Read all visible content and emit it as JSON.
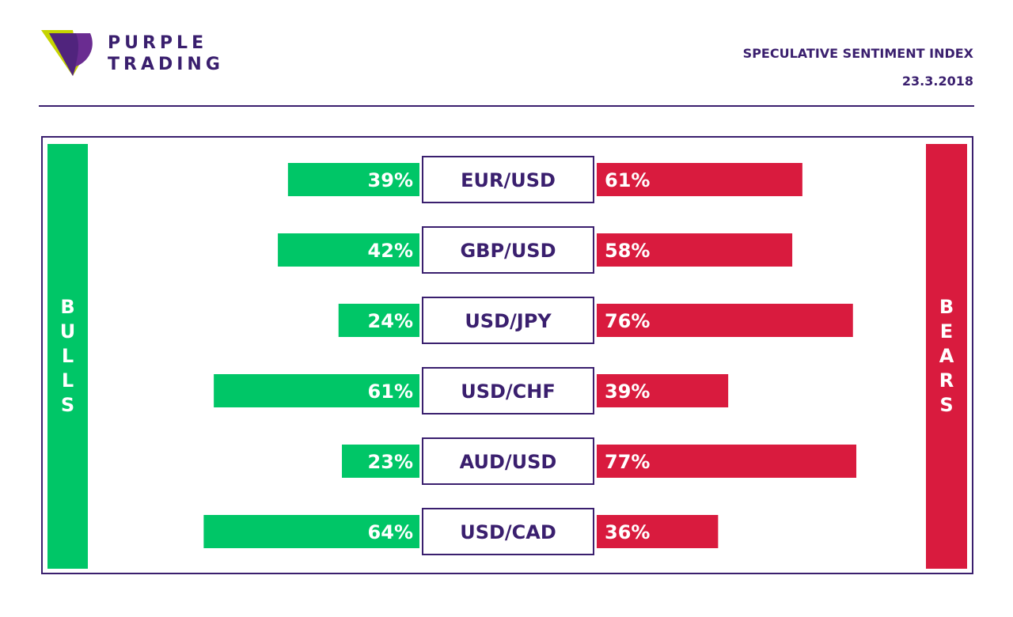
{
  "header": {
    "brand_line1": "PURPLE",
    "brand_line2": "TRADING",
    "title": "SPECULATIVE SENTIMENT INDEX",
    "date": "23.3.2018"
  },
  "side_labels": {
    "bulls": [
      "B",
      "U",
      "L",
      "L",
      "S"
    ],
    "bears": [
      "B",
      "E",
      "A",
      "R",
      "S"
    ]
  },
  "colors": {
    "bulls": "#00c667",
    "bears": "#d91b3e",
    "brand": "#3a1f6e",
    "logo_accent": "#c6d400"
  },
  "chart_data": {
    "type": "bar",
    "orientation": "diverging-horizontal",
    "categories": [
      "EUR/USD",
      "GBP/USD",
      "USD/JPY",
      "USD/CHF",
      "AUD/USD",
      "USD/CAD"
    ],
    "series": [
      {
        "name": "BULLS",
        "values": [
          39,
          42,
          24,
          61,
          23,
          64
        ],
        "labels": [
          "39%",
          "42%",
          "24%",
          "61%",
          "23%",
          "64%"
        ]
      },
      {
        "name": "BEARS",
        "values": [
          61,
          58,
          76,
          39,
          77,
          36
        ],
        "labels": [
          "61%",
          "58%",
          "76%",
          "39%",
          "77%",
          "36%"
        ]
      }
    ],
    "unit": "%"
  }
}
